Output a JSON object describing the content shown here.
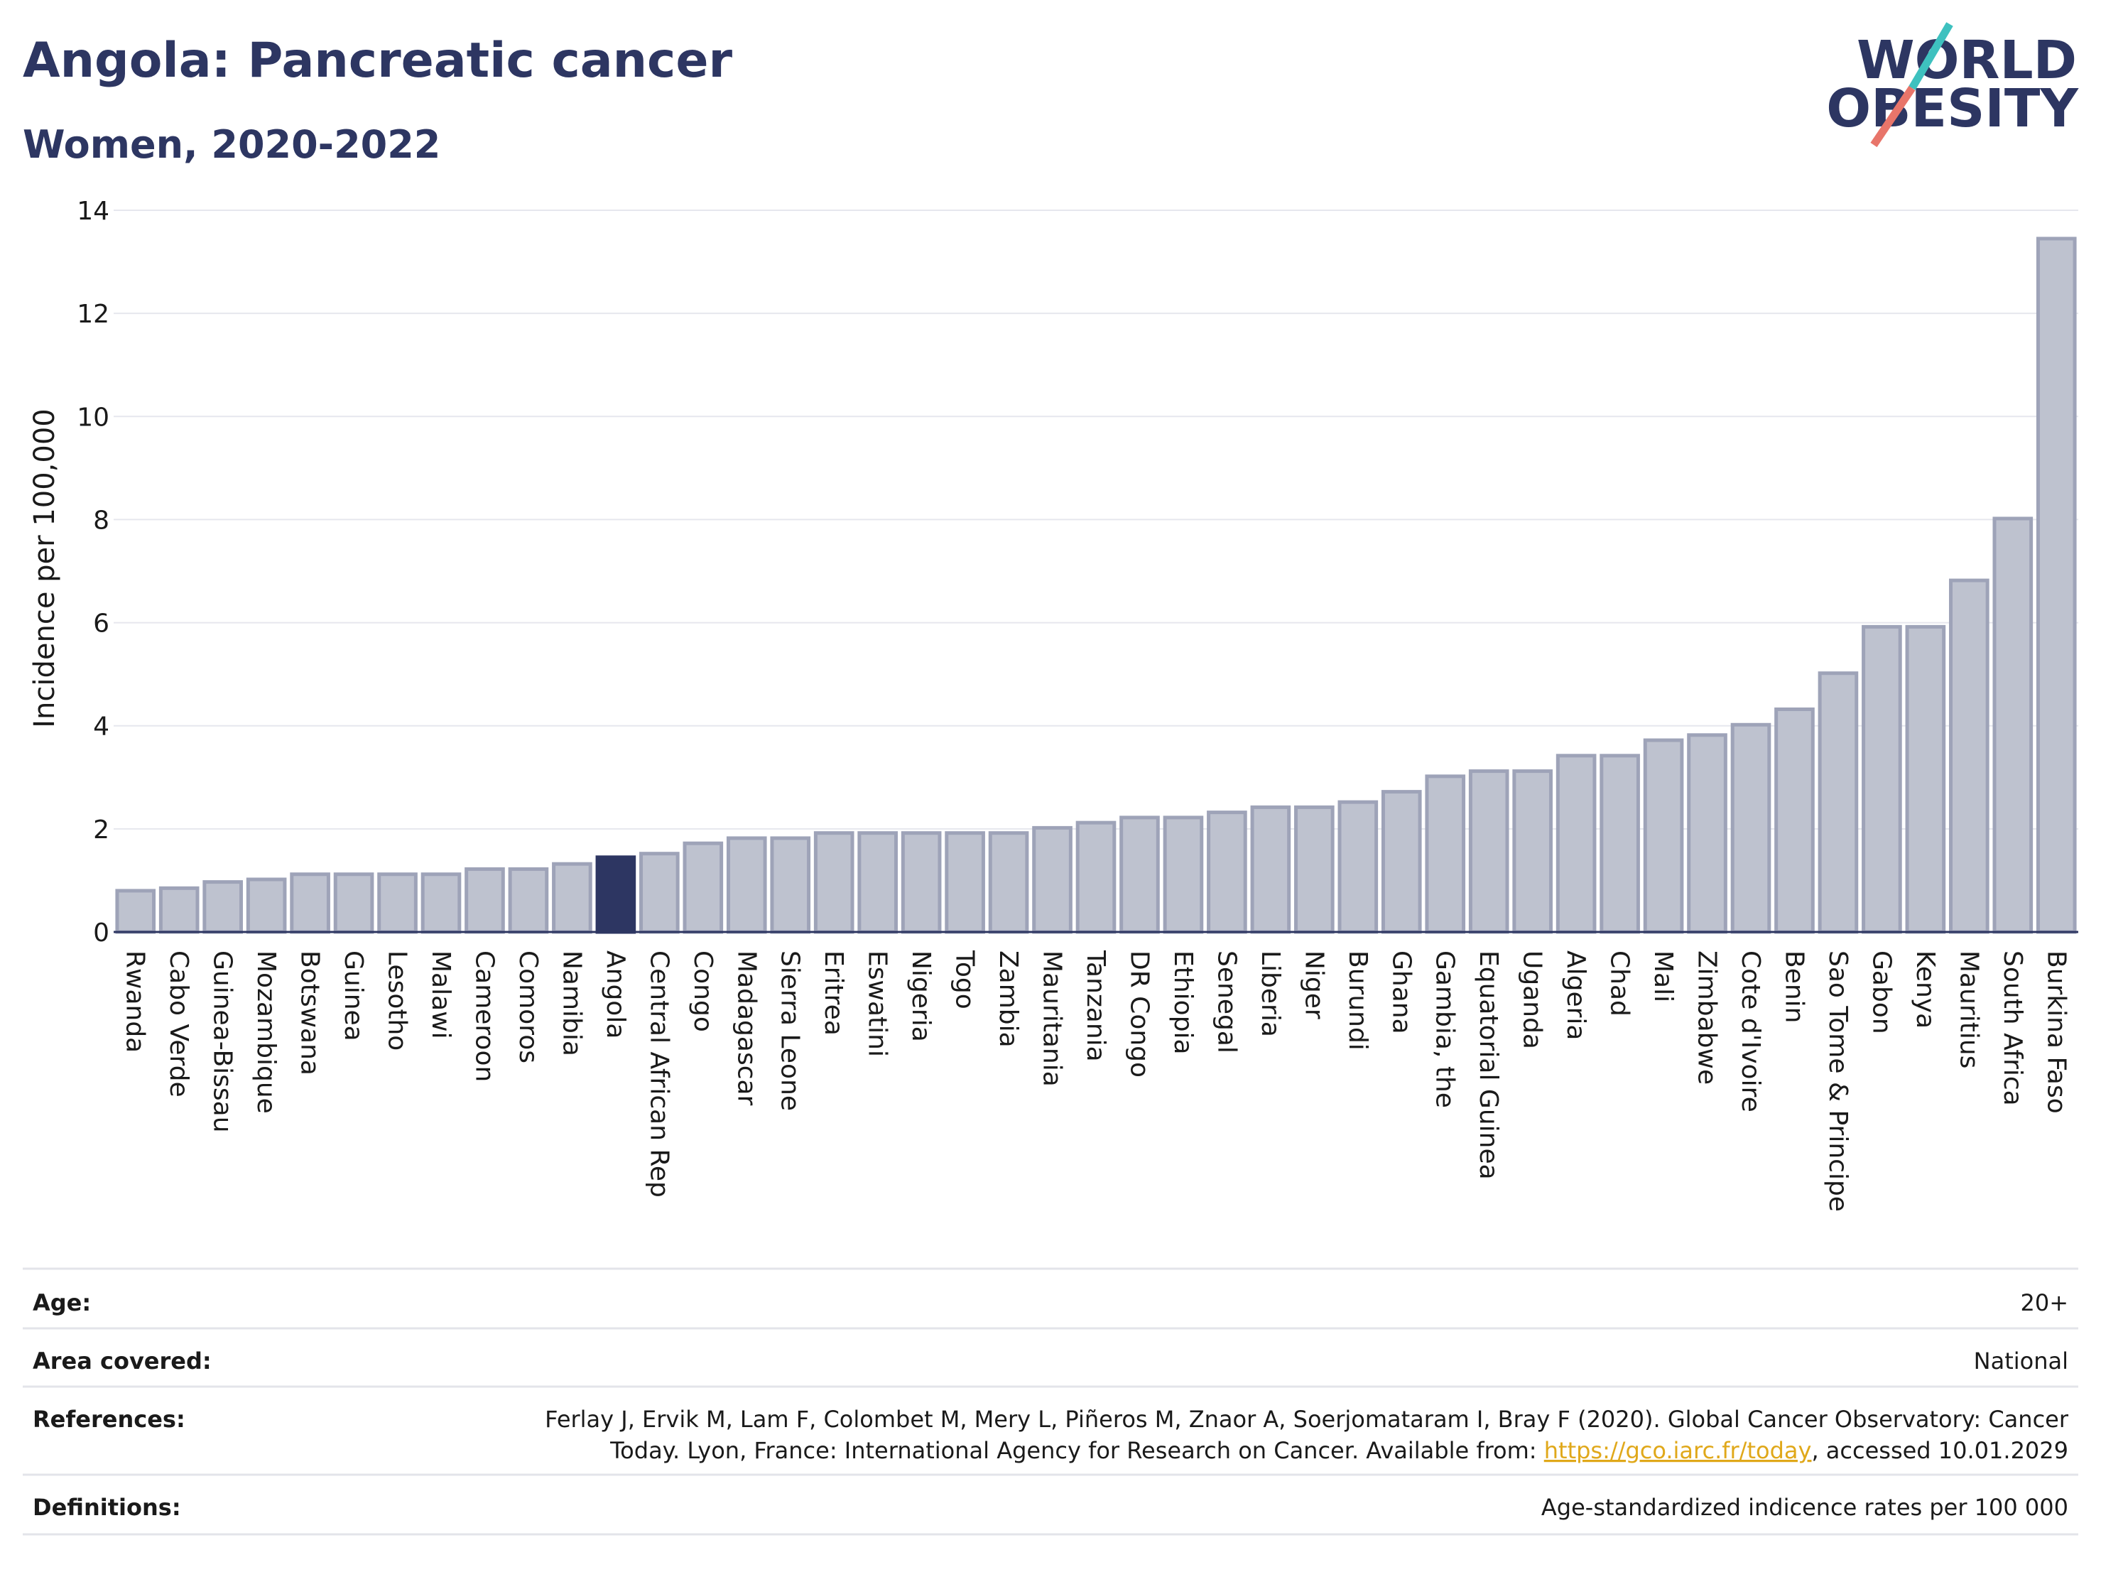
{
  "header": {
    "title": "Angola: Pancreatic cancer",
    "subtitle": "Women, 2020-2022"
  },
  "logo": {
    "line1": "WORLD",
    "line2": "OBESITY",
    "text_color": "#2d3662",
    "slash_red": "#e8756a",
    "slash_teal": "#3ec1bf"
  },
  "chart_data": {
    "type": "bar",
    "ylabel": "Incidence per 100,000",
    "ylim": [
      0,
      14
    ],
    "yticks": [
      0,
      2,
      4,
      6,
      8,
      10,
      12,
      14
    ],
    "grid": true,
    "highlight": "Angola",
    "colors": {
      "bar": "#bec2cf",
      "bar_edge": "#9ea3b8",
      "highlight": "#2d3662"
    },
    "categories": [
      "Rwanda",
      "Cabo Verde",
      "Guinea-Bissau",
      "Mozambique",
      "Botswana",
      "Guinea",
      "Lesotho",
      "Malawi",
      "Cameroon",
      "Comoros",
      "Namibia",
      "Angola",
      "Central African Rep",
      "Congo",
      "Madagascar",
      "Sierra Leone",
      "Eritrea",
      "Eswatini",
      "Nigeria",
      "Togo",
      "Zambia",
      "Mauritania",
      "Tanzania",
      "DR Congo",
      "Ethiopia",
      "Senegal",
      "Liberia",
      "Niger",
      "Burundi",
      "Ghana",
      "Gambia, the",
      "Equatorial Guinea",
      "Uganda",
      "Algeria",
      "Chad",
      "Mali",
      "Zimbabwe",
      "Cote d'Ivoire",
      "Benin",
      "Sao Tome & Principe",
      "Gabon",
      "Kenya",
      "Mauritius",
      "South Africa",
      "Burkina Faso"
    ],
    "values": [
      0.8,
      0.85,
      0.97,
      1.02,
      1.12,
      1.12,
      1.12,
      1.12,
      1.22,
      1.22,
      1.32,
      1.45,
      1.52,
      1.72,
      1.82,
      1.82,
      1.92,
      1.92,
      1.92,
      1.92,
      1.92,
      2.02,
      2.12,
      2.22,
      2.22,
      2.32,
      2.42,
      2.42,
      2.52,
      2.72,
      3.02,
      3.12,
      3.12,
      3.42,
      3.42,
      3.72,
      3.82,
      4.02,
      4.32,
      5.02,
      5.92,
      5.92,
      6.82,
      8.02,
      13.45
    ]
  },
  "info_table": {
    "rows": [
      {
        "key": "Age:",
        "value": "20+"
      },
      {
        "key": "Area covered:",
        "value": "National"
      },
      {
        "key": "References:",
        "value_line1": "Ferlay J, Ervik M, Lam F, Colombet M, Mery L, Piñeros M, Znaor A, Soerjomataram I, Bray F (2020). Global Cancer Observatory: Cancer",
        "value_line2_pre": "Today. Lyon, France: International Agency for Research on Cancer. Available from: ",
        "link": "https://gco.iarc.fr/today",
        "value_line2_post": ", accessed 10.01.2029"
      },
      {
        "key": "Definitions:",
        "value": "Age-standardized indicence rates per 100 000"
      }
    ]
  }
}
